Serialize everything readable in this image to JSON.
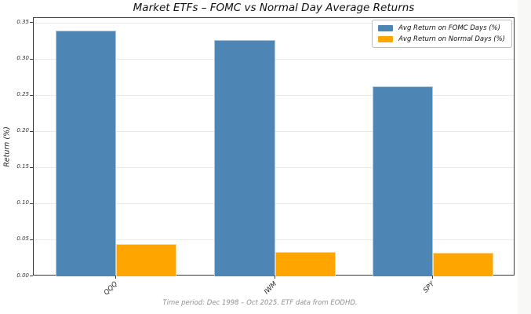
{
  "chart_data": {
    "type": "bar",
    "title": "Market ETFs – FOMC vs Normal Day Average Returns",
    "ylabel": "Return (%)",
    "xlabel": "",
    "footer": "Time period: Dec 1998 – Oct 2025. ETF data from EODHD.",
    "categories": [
      "QQQ",
      "IWM",
      "SPY"
    ],
    "series": [
      {
        "name": "Avg Return on FOMC Days (%)",
        "color": "#4d86b5",
        "values": [
          0.34,
          0.327,
          0.263
        ]
      },
      {
        "name": "Avg Return on Normal Days (%)",
        "color": "#ffa500",
        "values": [
          0.045,
          0.034,
          0.033
        ]
      }
    ],
    "ylim": [
      0,
      0.357
    ],
    "yticks": [
      0.0,
      0.05,
      0.1,
      0.15,
      0.2,
      0.25,
      0.3,
      0.35
    ],
    "ytick_decimals": 2,
    "grid": true,
    "legend_position": "upper right"
  },
  "colors": {
    "grid": "#e9e9e9",
    "spine": "#3a3a3a",
    "tick_label": "#333333",
    "footer_text": "#8f8f8f",
    "background": "#ffffff"
  }
}
